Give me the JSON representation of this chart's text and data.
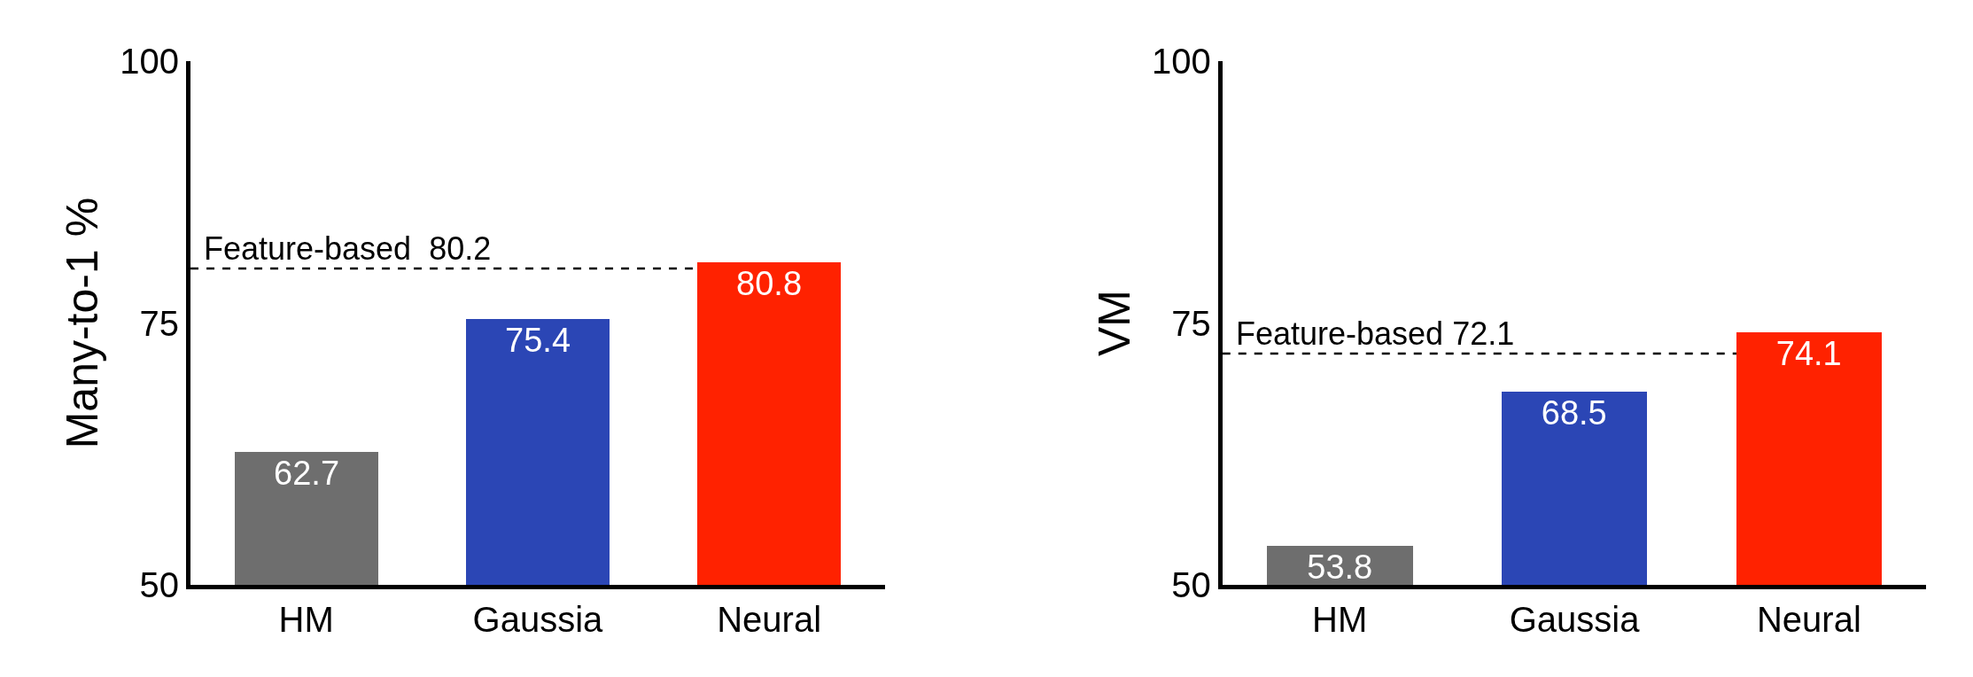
{
  "chart_data": [
    {
      "type": "bar",
      "ylabel": "Many-to-1 %",
      "categories": [
        "HM",
        "Gaussia",
        "Neural"
      ],
      "values": [
        62.7,
        75.4,
        80.8
      ],
      "colors": [
        "#6e6e6e",
        "#2b46b5",
        "#ff2200"
      ],
      "ylim": [
        50,
        100
      ],
      "yticks": [
        50,
        75,
        100
      ],
      "data_labels": true,
      "grid": false,
      "ref_lines": [
        {
          "axis": "y",
          "value": 80.2,
          "label": "Feature-based  80.2",
          "color": "#000000",
          "line_style": "dashed"
        }
      ]
    },
    {
      "type": "bar",
      "ylabel": "VM",
      "categories": [
        "HM",
        "Gaussia",
        "Neural"
      ],
      "values": [
        53.8,
        68.5,
        74.1
      ],
      "colors": [
        "#6e6e6e",
        "#2b46b5",
        "#ff2200"
      ],
      "ylim": [
        50,
        100
      ],
      "yticks": [
        50,
        75,
        100
      ],
      "data_labels": true,
      "grid": false,
      "ref_lines": [
        {
          "axis": "y",
          "value": 72.1,
          "label": "Feature-based 72.1",
          "color": "#000000",
          "line_style": "dashed"
        }
      ]
    }
  ]
}
